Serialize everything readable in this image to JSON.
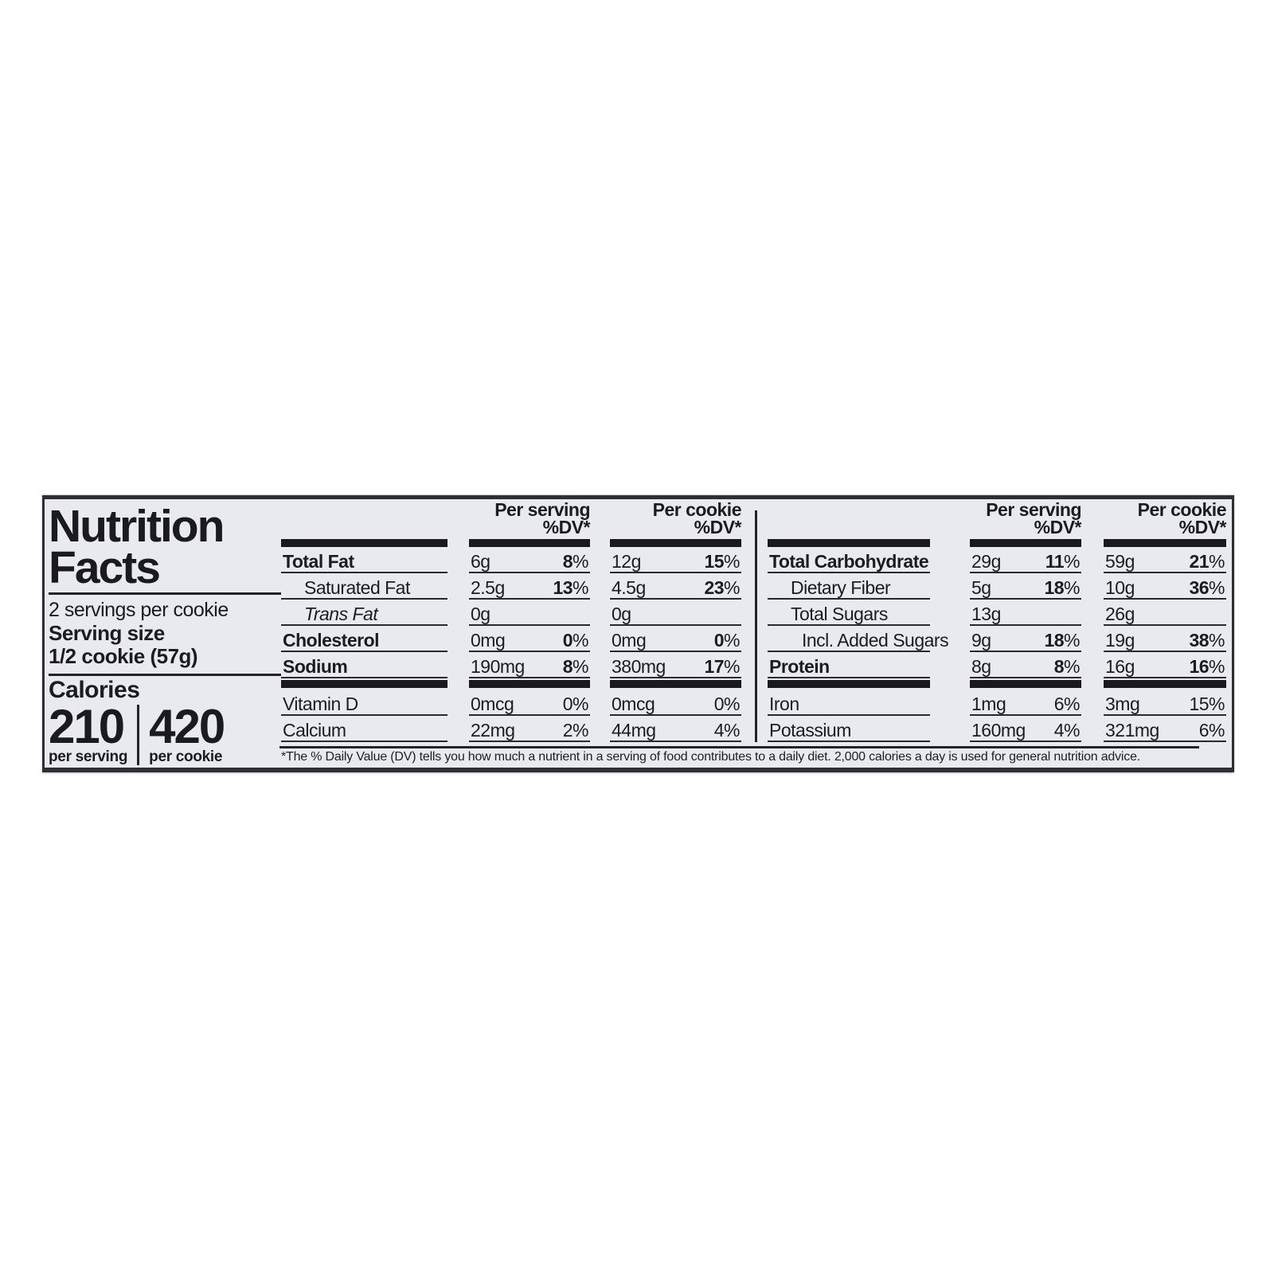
{
  "nutrition_label": {
    "title": {
      "line1": "Nutrition",
      "line2": "Facts"
    },
    "servings_statement": "2 servings per cookie",
    "serving_size": {
      "label": "Serving size",
      "value": "1/2 cookie (57g)"
    },
    "calories": {
      "label": "Calories",
      "per_serving": {
        "value": "210",
        "caption": "per serving"
      },
      "per_cookie": {
        "value": "420",
        "caption": "per cookie"
      }
    },
    "column_headers": {
      "per_serving": "Per serving",
      "per_cookie": "Per cookie",
      "dv": "%DV*"
    },
    "left_table": {
      "rows": [
        {
          "name": "Total Fat",
          "name_style": "bold",
          "indent": 0,
          "per_serving_amount": "6g",
          "per_serving_dv": "8%",
          "per_cookie_amount": "12g",
          "per_cookie_dv": "15%",
          "dv_bold": true,
          "bar_after": false
        },
        {
          "name": "Saturated Fat",
          "name_style": "regular",
          "indent": 1,
          "per_serving_amount": "2.5g",
          "per_serving_dv": "13%",
          "per_cookie_amount": "4.5g",
          "per_cookie_dv": "23%",
          "dv_bold": true,
          "bar_after": false
        },
        {
          "name": "Trans Fat",
          "name_style": "italic",
          "indent": 1,
          "per_serving_amount": "0g",
          "per_serving_dv": "",
          "per_cookie_amount": "0g",
          "per_cookie_dv": "",
          "dv_bold": true,
          "bar_after": false
        },
        {
          "name": "Cholesterol",
          "name_style": "bold",
          "indent": 0,
          "per_serving_amount": "0mg",
          "per_serving_dv": "0%",
          "per_cookie_amount": "0mg",
          "per_cookie_dv": "0%",
          "dv_bold": true,
          "bar_after": false
        },
        {
          "name": "Sodium",
          "name_style": "bold",
          "indent": 0,
          "per_serving_amount": "190mg",
          "per_serving_dv": "8%",
          "per_cookie_amount": "380mg",
          "per_cookie_dv": "17%",
          "dv_bold": true,
          "bar_after": true
        },
        {
          "name": "Vitamin D",
          "name_style": "regular",
          "indent": 0,
          "per_serving_amount": "0mcg",
          "per_serving_dv": "0%",
          "per_cookie_amount": "0mcg",
          "per_cookie_dv": "0%",
          "dv_bold": false,
          "bar_after": false
        },
        {
          "name": "Calcium",
          "name_style": "regular",
          "indent": 0,
          "per_serving_amount": "22mg",
          "per_serving_dv": "2%",
          "per_cookie_amount": "44mg",
          "per_cookie_dv": "4%",
          "dv_bold": false,
          "bar_after": false
        }
      ]
    },
    "right_table": {
      "rows": [
        {
          "name": "Total Carbohydrate",
          "name_style": "bold",
          "indent": 0,
          "per_serving_amount": "29g",
          "per_serving_dv": "11%",
          "per_cookie_amount": "59g",
          "per_cookie_dv": "21%",
          "dv_bold": true,
          "bar_after": false
        },
        {
          "name": "Dietary Fiber",
          "name_style": "regular",
          "indent": 1,
          "per_serving_amount": "5g",
          "per_serving_dv": "18%",
          "per_cookie_amount": "10g",
          "per_cookie_dv": "36%",
          "dv_bold": true,
          "bar_after": false
        },
        {
          "name": "Total Sugars",
          "name_style": "regular",
          "indent": 1,
          "per_serving_amount": "13g",
          "per_serving_dv": "",
          "per_cookie_amount": "26g",
          "per_cookie_dv": "",
          "dv_bold": true,
          "bar_after": false
        },
        {
          "name": "Incl. Added Sugars",
          "name_style": "regular",
          "indent": 2,
          "per_serving_amount": "9g",
          "per_serving_dv": "18%",
          "per_cookie_amount": "19g",
          "per_cookie_dv": "38%",
          "dv_bold": true,
          "bar_after": false
        },
        {
          "name": "Protein",
          "name_style": "bold",
          "indent": 0,
          "per_serving_amount": "8g",
          "per_serving_dv": "8%",
          "per_cookie_amount": "16g",
          "per_cookie_dv": "16%",
          "dv_bold": true,
          "bar_after": true
        },
        {
          "name": "Iron",
          "name_style": "regular",
          "indent": 0,
          "per_serving_amount": "1mg",
          "per_serving_dv": "6%",
          "per_cookie_amount": "3mg",
          "per_cookie_dv": "15%",
          "dv_bold": false,
          "bar_after": false
        },
        {
          "name": "Potassium",
          "name_style": "regular",
          "indent": 0,
          "per_serving_amount": "160mg",
          "per_serving_dv": "4%",
          "per_cookie_amount": "321mg",
          "per_cookie_dv": "6%",
          "dv_bold": false,
          "bar_after": false
        }
      ]
    },
    "footnote": "*The % Daily Value (DV) tells you how much a nutrient in a serving of food contributes to a daily diet. 2,000 calories a day is used for general nutrition advice.",
    "colors": {
      "label_background": "#e9eaef",
      "text": "#1c1c20",
      "bar": "#1a1a1e"
    }
  }
}
